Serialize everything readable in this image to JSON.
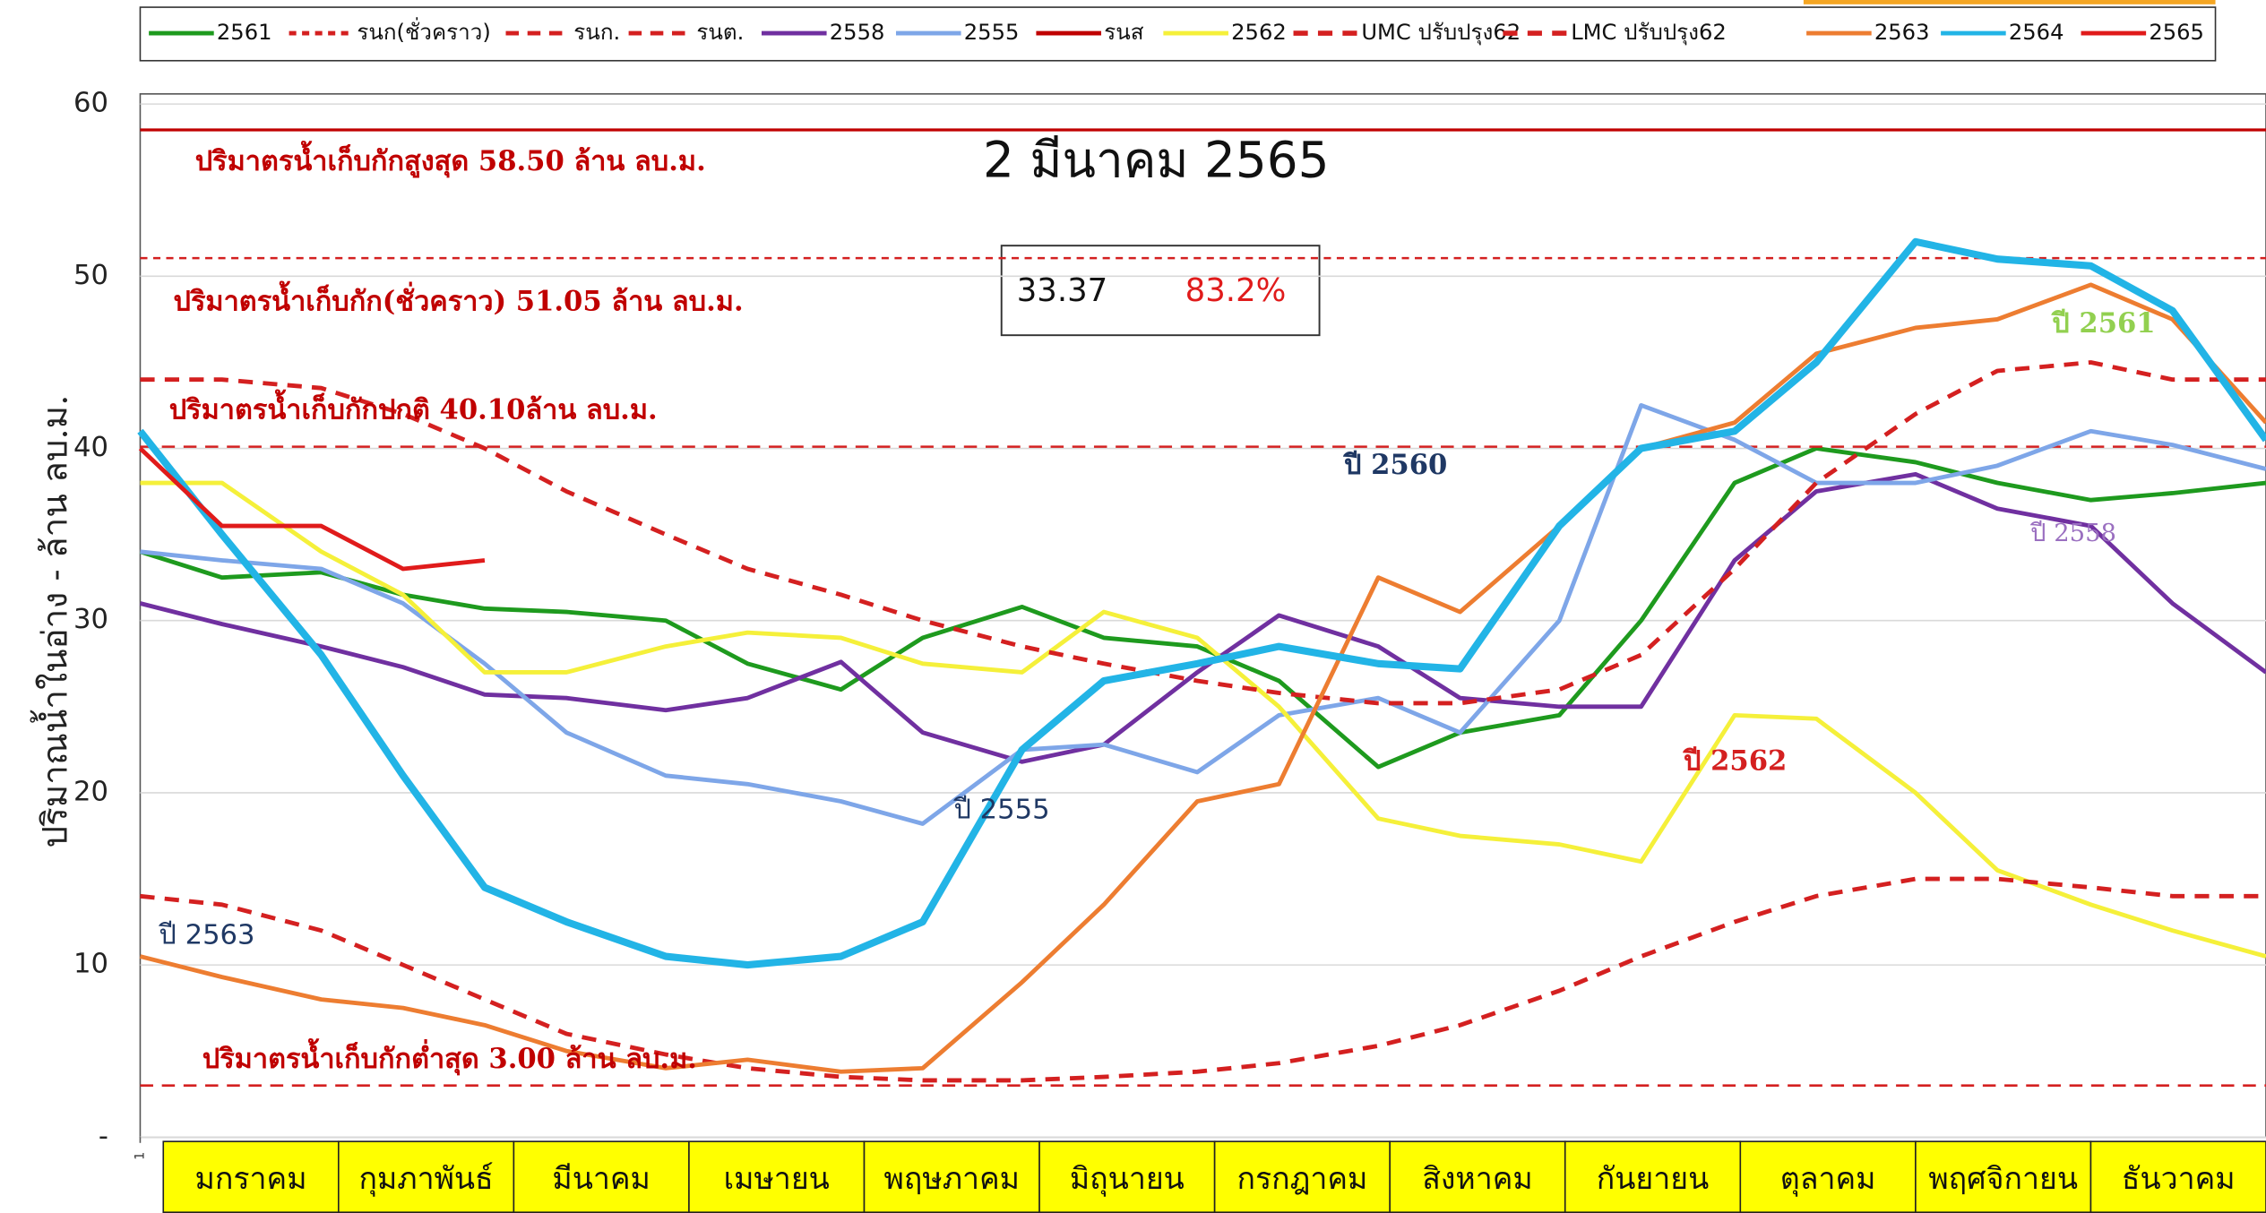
{
  "chart_data": {
    "type": "line",
    "title": "2 มีนาคม 2565",
    "ylabel": "ปริมาณน้ำในอ่าง - ล้าน ลบ.ม.",
    "info_box": [
      "33.37",
      "83.2%"
    ],
    "ylim": [
      0,
      60
    ],
    "yticks": [
      {
        "value": 0,
        "label": "-"
      },
      10,
      20,
      30,
      40,
      50,
      60
    ],
    "xlim": [
      1,
      365
    ],
    "xticks": [
      1
    ],
    "grid": true,
    "months": [
      "มกราคม",
      "กุมภาพันธ์",
      "มีนาคม",
      "เมษายน",
      "พฤษภาคม",
      "มิถุนายน",
      "กรกฎาคม",
      "สิงหาคม",
      "กันยายน",
      "ตุลาคม",
      "พฤศจิกายน",
      "ธันวาคม"
    ],
    "x": [
      1,
      15,
      32,
      46,
      60,
      74,
      91,
      105,
      121,
      135,
      152,
      166,
      182,
      196,
      213,
      227,
      244,
      258,
      274,
      288,
      305,
      319,
      335,
      349,
      365
    ],
    "series": [
      {
        "name": "2561",
        "color": "#1e9a1e",
        "dash": "solid",
        "values": [
          34,
          32.5,
          32.8,
          31.5,
          30.7,
          30.5,
          30,
          27.5,
          26,
          29,
          30.8,
          29,
          28.5,
          26.5,
          21.5,
          23.5,
          24.5,
          30,
          38,
          40,
          39.2,
          38,
          37,
          37.4,
          38
        ]
      },
      {
        "name": "รนก(ชั่วคราว)",
        "color": "#d42020",
        "dash": "dotted",
        "level": 51.05
      },
      {
        "name": "รนก.",
        "color": "#d42020",
        "dash": "dashed",
        "level": 40.1
      },
      {
        "name": "รนต.",
        "color": "#d42020",
        "dash": "dashed",
        "level": 3
      },
      {
        "name": "2558",
        "color": "#7030a0",
        "dash": "solid",
        "values": [
          31,
          29.8,
          28.5,
          27.3,
          25.7,
          25.5,
          24.8,
          25.5,
          27.6,
          23.5,
          21.8,
          22.8,
          27,
          30.3,
          28.5,
          25.5,
          25,
          25,
          33.5,
          37.5,
          38.5,
          36.5,
          35.5,
          31,
          27
        ]
      },
      {
        "name": "2555",
        "color": "#7ea6e8",
        "dash": "solid",
        "values": [
          34,
          33.5,
          33,
          31,
          27.5,
          23.5,
          21,
          20.5,
          19.5,
          18.2,
          22.5,
          22.8,
          21.2,
          24.5,
          25.5,
          23.5,
          30,
          42.5,
          40.5,
          38,
          38,
          39,
          41,
          40.2,
          38.8
        ]
      },
      {
        "name": "รนส",
        "color": "#c00000",
        "dash": "solid",
        "level": 58.5
      },
      {
        "name": "2562",
        "color": "#f5f03a",
        "dash": "solid",
        "values": [
          38,
          38,
          34,
          31.5,
          27,
          27,
          28.5,
          29.3,
          29,
          27.5,
          27,
          30.5,
          29,
          25,
          18.5,
          17.5,
          17,
          16,
          24.5,
          24.3,
          20,
          15.5,
          13.5,
          12,
          10.5
        ]
      },
      {
        "name": "UMC ปรับปรุง62",
        "color": "#d42020",
        "dash": "thickdash",
        "values": [
          44,
          44,
          43.5,
          42,
          40,
          37.5,
          35,
          33,
          31.5,
          30,
          28.5,
          27.5,
          26.5,
          25.8,
          25.2,
          25.2,
          26,
          28,
          33,
          38,
          42,
          44.5,
          45,
          44,
          44
        ]
      },
      {
        "name": "LMC ปรับปรุง62",
        "color": "#d42020",
        "dash": "thickdash",
        "values": [
          14,
          13.5,
          12,
          10,
          8,
          6,
          4.8,
          4,
          3.5,
          3.3,
          3.3,
          3.5,
          3.8,
          4.3,
          5.3,
          6.5,
          8.5,
          10.5,
          12.5,
          14,
          15,
          15,
          14.5,
          14,
          14
        ]
      },
      {
        "name": "2563",
        "color": "#ed7d31",
        "dash": "solid",
        "values": [
          10.5,
          9.3,
          8,
          7.5,
          6.5,
          5,
          4,
          4.5,
          3.8,
          4,
          9,
          13.5,
          19.5,
          20.5,
          32.5,
          30.5,
          35.5,
          40,
          41.5,
          45.5,
          47,
          47.5,
          49.5,
          47.5,
          41.5
        ]
      },
      {
        "name": "2564",
        "color": "#22b4e6",
        "dash": "solid",
        "values": [
          41,
          35,
          28,
          21,
          14.5,
          12.5,
          10.5,
          10,
          10.5,
          12.5,
          22.5,
          26.5,
          27.5,
          28.5,
          27.5,
          27.2,
          35.5,
          40,
          41,
          45,
          52,
          51,
          50.6,
          48,
          40.5
        ]
      },
      {
        "name": "2565",
        "color": "#e01b1b",
        "dash": "solid",
        "values": [
          40,
          35.5,
          35.5,
          33,
          33.5,
          null,
          null,
          null,
          null,
          null,
          null,
          null,
          null,
          null,
          null,
          null,
          null,
          null,
          null,
          null,
          null,
          null,
          null,
          null,
          null
        ]
      }
    ],
    "annotations": [
      {
        "text": "ปริมาตรน้ำเก็บกักสูงสุด 58.50 ล้าน ลบ.ม.",
        "color": "#c00000"
      },
      {
        "text": "ปริมาตรน้ำเก็บกัก(ชั่วคราว) 51.05 ล้าน ลบ.ม.",
        "color": "#c00000"
      },
      {
        "text": "ปริมาตรน้ำเก็บกักปกติ 40.10ล้าน ลบ.ม.",
        "color": "#c00000"
      },
      {
        "text": "ปริมาตรน้ำเก็บกักต่ำสุด 3.00 ล้าน ลบ.ม.",
        "color": "#c00000"
      },
      {
        "text": "ปี 2563",
        "color": "#1f3864"
      },
      {
        "text": "ปี 2555",
        "color": "#1f3864"
      },
      {
        "text": "ปี 2560",
        "color": "#1f3864"
      },
      {
        "text": "ปี 2562",
        "color": "#d42020"
      },
      {
        "text": "ปี 2561",
        "color": "#92d050"
      },
      {
        "text": "ปี 2558",
        "color": "#9a6fc0"
      }
    ]
  }
}
